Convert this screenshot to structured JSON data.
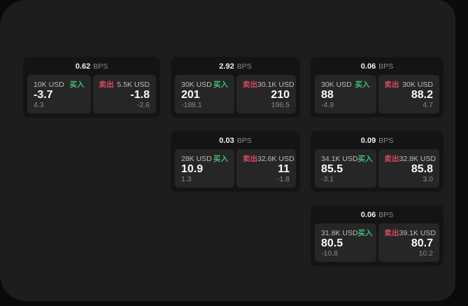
{
  "labels": {
    "bps_unit": "BPS",
    "buy": "买入",
    "sell": "卖出"
  },
  "theme": {
    "panel_bg": "#1d1d1d",
    "card_bg": "#141414",
    "pane_bg": "#262626",
    "buy_color": "#40bd78",
    "sell_color": "#d94a5e"
  },
  "cards": [
    {
      "bps": "0.62",
      "buy": {
        "notional": "10K USD",
        "value": "-3.7",
        "delta": "4.3"
      },
      "sell": {
        "notional": "5.5K USD",
        "value": "-1.8",
        "delta": "-2.6"
      }
    },
    {
      "bps": "2.92",
      "buy": {
        "notional": "30K USD",
        "value": "201",
        "delta": "-188.1"
      },
      "sell": {
        "notional": "30.1K USD",
        "value": "210",
        "delta": "196.5"
      }
    },
    {
      "bps": "0.06",
      "buy": {
        "notional": "30K USD",
        "value": "88",
        "delta": "-4.9"
      },
      "sell": {
        "notional": "30K USD",
        "value": "88.2",
        "delta": "4.7"
      }
    },
    {
      "bps": "0.03",
      "buy": {
        "notional": "28K USD",
        "value": "10.9",
        "delta": "1.3"
      },
      "sell": {
        "notional": "32.6K USD",
        "value": "11",
        "delta": "-1.8"
      }
    },
    {
      "bps": "0.09",
      "buy": {
        "notional": "34.1K USD",
        "value": "85.5",
        "delta": "-3.1"
      },
      "sell": {
        "notional": "32.8K USD",
        "value": "85.8",
        "delta": "3.0"
      }
    },
    {
      "bps": "0.06",
      "buy": {
        "notional": "31.8K USD",
        "value": "80.5",
        "delta": "-10.8"
      },
      "sell": {
        "notional": "39.1K USD",
        "value": "80.7",
        "delta": "10.2"
      }
    }
  ]
}
